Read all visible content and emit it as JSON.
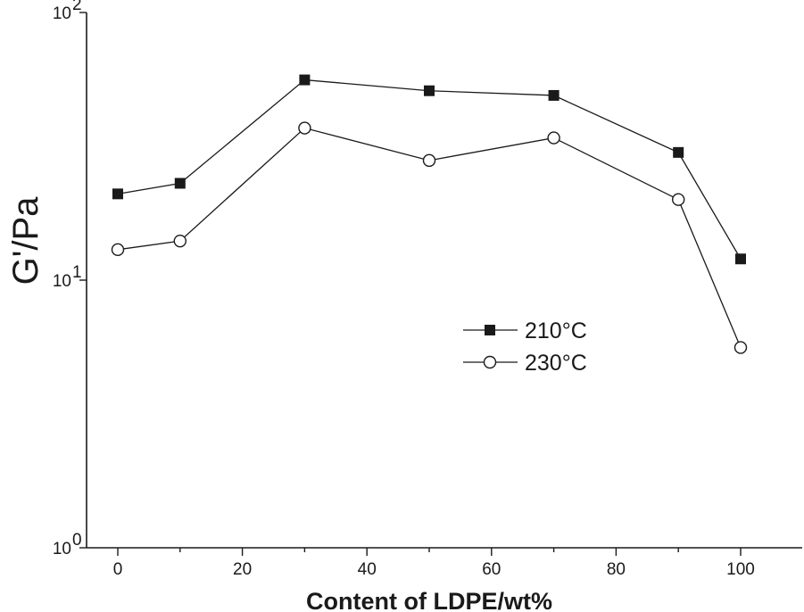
{
  "chart_data": {
    "type": "line",
    "title": "",
    "xlabel": "Content of LDPE/wt%",
    "ylabel": "G'/Pa",
    "y_scale": "log",
    "xlim": [
      -5,
      105
    ],
    "ylim": [
      1,
      100
    ],
    "x_ticks": [
      0,
      20,
      40,
      60,
      80,
      100
    ],
    "y_ticks": [
      {
        "value": 1,
        "base": "10",
        "exp": "0"
      },
      {
        "value": 10,
        "base": "10",
        "exp": "1"
      },
      {
        "value": 100,
        "base": "10",
        "exp": "2"
      }
    ],
    "legend_position": "center-right",
    "series": [
      {
        "name": "210°C",
        "marker": "filled-square",
        "x": [
          0,
          10,
          30,
          50,
          70,
          90,
          100
        ],
        "values": [
          21,
          23,
          56,
          51,
          49,
          30,
          12
        ]
      },
      {
        "name": "230°C",
        "marker": "open-circle",
        "x": [
          0,
          10,
          30,
          50,
          70,
          90,
          100
        ],
        "values": [
          13,
          14,
          37,
          28,
          34,
          20,
          5.6
        ]
      }
    ]
  }
}
